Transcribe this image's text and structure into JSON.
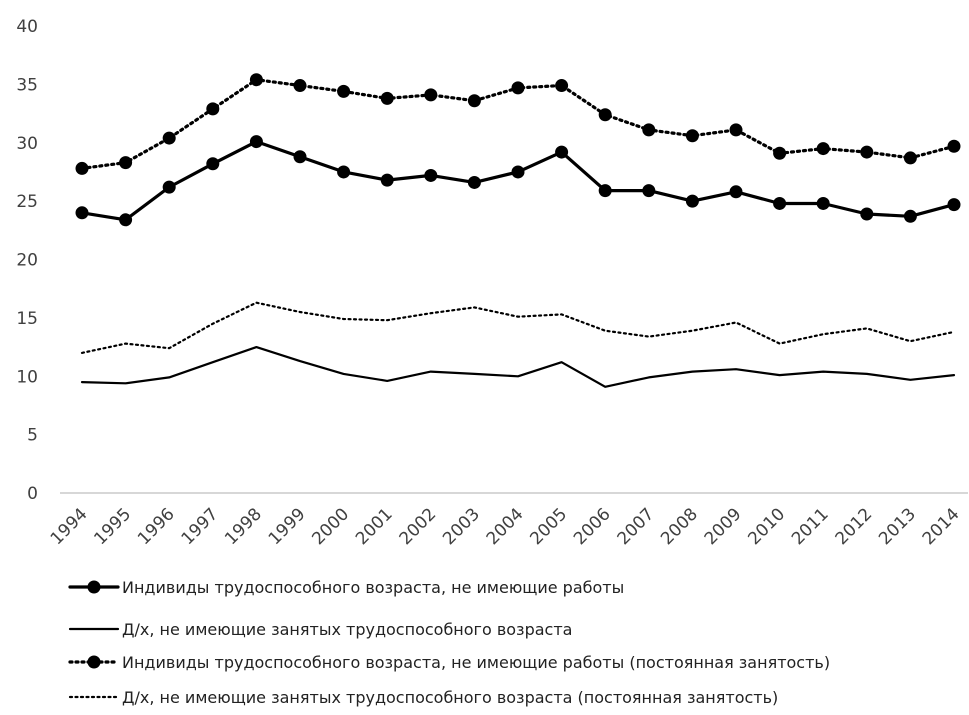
{
  "chart_data": {
    "type": "line",
    "title": "",
    "xlabel": "",
    "ylabel": "",
    "ylim": [
      0,
      40
    ],
    "yticks": [
      "0",
      "5",
      "10",
      "15",
      "20",
      "25",
      "30",
      "35",
      "40"
    ],
    "grid": false,
    "legend_position": "bottom",
    "categories": [
      "1994",
      "1995",
      "1996",
      "1997",
      "1998",
      "1999",
      "2000",
      "2001",
      "2002",
      "2003",
      "2004",
      "2005",
      "2006",
      "2007",
      "2008",
      "2009",
      "2010",
      "2011",
      "2012",
      "2013",
      "2014"
    ],
    "series": [
      {
        "name": "Индивиды трудоспособного возраста, не имеющие работы",
        "line_style": "solid-thick",
        "markers": true,
        "color": "#000000",
        "values": [
          24.0,
          23.4,
          26.2,
          28.2,
          30.1,
          28.8,
          27.5,
          26.8,
          27.2,
          26.6,
          27.5,
          29.2,
          25.9,
          25.9,
          25.0,
          25.8,
          24.8,
          24.8,
          23.9,
          23.7,
          24.7
        ]
      },
      {
        "name": "Д/х, не имеющие занятых трудоспособного возраста",
        "line_style": "solid",
        "markers": false,
        "color": "#000000",
        "values": [
          9.5,
          9.4,
          9.9,
          11.2,
          12.5,
          11.3,
          10.2,
          9.6,
          10.4,
          10.2,
          10.0,
          11.2,
          9.1,
          9.9,
          10.4,
          10.6,
          10.1,
          10.4,
          10.2,
          9.7,
          10.1
        ]
      },
      {
        "name": "Индивиды трудоспособного возраста, не имеющие работы (постоянная занятость)",
        "line_style": "dotted-thick",
        "markers": true,
        "color": "#000000",
        "values": [
          27.8,
          28.3,
          30.4,
          32.9,
          35.4,
          34.9,
          34.4,
          33.8,
          34.1,
          33.6,
          34.7,
          34.9,
          32.4,
          31.1,
          30.6,
          31.1,
          29.1,
          29.5,
          29.2,
          28.7,
          29.7
        ]
      },
      {
        "name": "Д/х, не имеющие занятых трудоспособного возраста (постоянная занятость)",
        "line_style": "dotted",
        "markers": false,
        "color": "#000000",
        "values": [
          12.0,
          12.8,
          12.4,
          14.5,
          16.3,
          15.5,
          14.9,
          14.8,
          15.4,
          15.9,
          15.1,
          15.3,
          13.9,
          13.4,
          13.9,
          14.6,
          12.8,
          13.6,
          14.1,
          13.0,
          13.8
        ]
      }
    ]
  }
}
